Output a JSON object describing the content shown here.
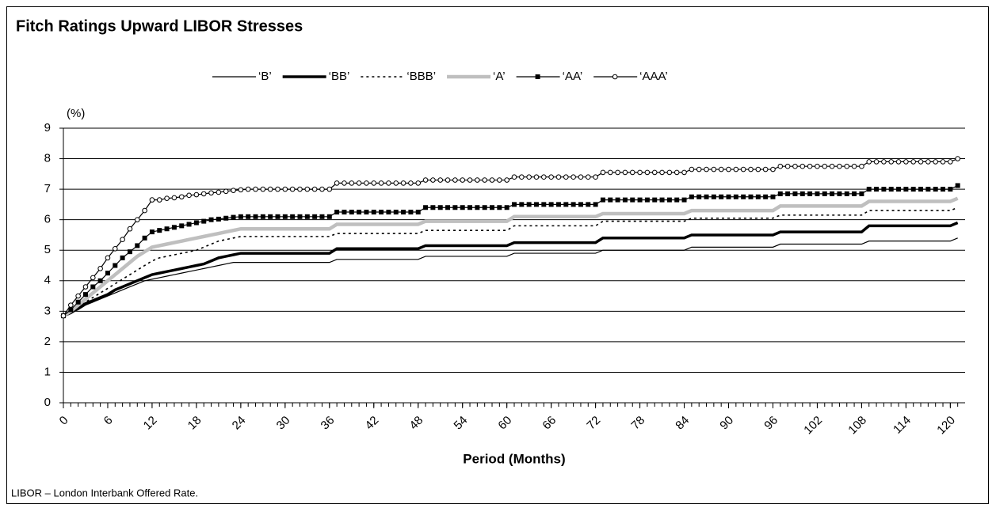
{
  "chart_data": {
    "type": "line",
    "title": "Fitch Ratings Upward LIBOR Stresses",
    "y_label": "(%)",
    "x_label": "Period (Months)",
    "footnote": "LIBOR – London Interbank Offered Rate.",
    "x": [
      0,
      1,
      2,
      3,
      4,
      5,
      6,
      7,
      8,
      9,
      10,
      11,
      12,
      13,
      14,
      15,
      16,
      17,
      18,
      19,
      20,
      21,
      22,
      23,
      24,
      25,
      26,
      27,
      28,
      29,
      30,
      31,
      32,
      33,
      34,
      35,
      36,
      37,
      38,
      39,
      40,
      41,
      42,
      43,
      44,
      45,
      46,
      47,
      48,
      49,
      50,
      51,
      52,
      53,
      54,
      55,
      56,
      57,
      58,
      59,
      60,
      61,
      62,
      63,
      64,
      65,
      66,
      67,
      68,
      69,
      70,
      71,
      72,
      73,
      74,
      75,
      76,
      77,
      78,
      79,
      80,
      81,
      82,
      83,
      84,
      85,
      86,
      87,
      88,
      89,
      90,
      91,
      92,
      93,
      94,
      95,
      96,
      97,
      98,
      99,
      100,
      101,
      102,
      103,
      104,
      105,
      106,
      107,
      108,
      109,
      110,
      111,
      112,
      113,
      114,
      115,
      116,
      117,
      118,
      119,
      120,
      121
    ],
    "xlim": [
      0,
      122
    ],
    "xticks": [
      0,
      6,
      12,
      18,
      24,
      30,
      36,
      42,
      48,
      54,
      60,
      66,
      72,
      78,
      84,
      90,
      96,
      102,
      108,
      114,
      120
    ],
    "ylim": [
      0,
      9
    ],
    "yticks": [
      0,
      1,
      2,
      3,
      4,
      5,
      6,
      7,
      8,
      9
    ],
    "grid": true,
    "series": [
      {
        "name": "‘B’",
        "color": "#000000",
        "line_width": 1.2,
        "dash": "none",
        "marker": "none",
        "values": [
          2.85,
          2.95,
          3.05,
          3.2,
          3.3,
          3.4,
          3.5,
          3.6,
          3.7,
          3.8,
          3.9,
          4.0,
          4.05,
          4.1,
          4.15,
          4.2,
          4.25,
          4.3,
          4.35,
          4.4,
          4.45,
          4.5,
          4.55,
          4.6,
          4.6,
          4.6,
          4.6,
          4.6,
          4.6,
          4.6,
          4.6,
          4.6,
          4.6,
          4.6,
          4.6,
          4.6,
          4.6,
          4.7,
          4.7,
          4.7,
          4.7,
          4.7,
          4.7,
          4.7,
          4.7,
          4.7,
          4.7,
          4.7,
          4.7,
          4.8,
          4.8,
          4.8,
          4.8,
          4.8,
          4.8,
          4.8,
          4.8,
          4.8,
          4.8,
          4.8,
          4.8,
          4.9,
          4.9,
          4.9,
          4.9,
          4.9,
          4.9,
          4.9,
          4.9,
          4.9,
          4.9,
          4.9,
          4.9,
          5.0,
          5.0,
          5.0,
          5.0,
          5.0,
          5.0,
          5.0,
          5.0,
          5.0,
          5.0,
          5.0,
          5.0,
          5.1,
          5.1,
          5.1,
          5.1,
          5.1,
          5.1,
          5.1,
          5.1,
          5.1,
          5.1,
          5.1,
          5.1,
          5.2,
          5.2,
          5.2,
          5.2,
          5.2,
          5.2,
          5.2,
          5.2,
          5.2,
          5.2,
          5.2,
          5.2,
          5.3,
          5.3,
          5.3,
          5.3,
          5.3,
          5.3,
          5.3,
          5.3,
          5.3,
          5.3,
          5.3,
          5.3,
          5.4
        ]
      },
      {
        "name": "‘BB’",
        "color": "#000000",
        "line_width": 3.5,
        "dash": "none",
        "marker": "none",
        "values": [
          2.85,
          2.95,
          3.1,
          3.25,
          3.35,
          3.45,
          3.55,
          3.7,
          3.8,
          3.9,
          4.0,
          4.1,
          4.2,
          4.25,
          4.3,
          4.35,
          4.4,
          4.45,
          4.5,
          4.55,
          4.65,
          4.75,
          4.8,
          4.85,
          4.9,
          4.9,
          4.9,
          4.9,
          4.9,
          4.9,
          4.9,
          4.9,
          4.9,
          4.9,
          4.9,
          4.9,
          4.9,
          5.05,
          5.05,
          5.05,
          5.05,
          5.05,
          5.05,
          5.05,
          5.05,
          5.05,
          5.05,
          5.05,
          5.05,
          5.15,
          5.15,
          5.15,
          5.15,
          5.15,
          5.15,
          5.15,
          5.15,
          5.15,
          5.15,
          5.15,
          5.15,
          5.25,
          5.25,
          5.25,
          5.25,
          5.25,
          5.25,
          5.25,
          5.25,
          5.25,
          5.25,
          5.25,
          5.25,
          5.4,
          5.4,
          5.4,
          5.4,
          5.4,
          5.4,
          5.4,
          5.4,
          5.4,
          5.4,
          5.4,
          5.4,
          5.5,
          5.5,
          5.5,
          5.5,
          5.5,
          5.5,
          5.5,
          5.5,
          5.5,
          5.5,
          5.5,
          5.5,
          5.6,
          5.6,
          5.6,
          5.6,
          5.6,
          5.6,
          5.6,
          5.6,
          5.6,
          5.6,
          5.6,
          5.6,
          5.8,
          5.8,
          5.8,
          5.8,
          5.8,
          5.8,
          5.8,
          5.8,
          5.8,
          5.8,
          5.8,
          5.8,
          5.9
        ]
      },
      {
        "name": "‘BBB’",
        "color": "#000000",
        "line_width": 1.6,
        "dash": "3 4",
        "marker": "none",
        "values": [
          2.85,
          3.0,
          3.15,
          3.3,
          3.45,
          3.6,
          3.75,
          3.9,
          4.05,
          4.2,
          4.35,
          4.5,
          4.65,
          4.75,
          4.8,
          4.85,
          4.9,
          4.95,
          5.0,
          5.1,
          5.2,
          5.3,
          5.35,
          5.4,
          5.45,
          5.45,
          5.45,
          5.45,
          5.45,
          5.45,
          5.45,
          5.45,
          5.45,
          5.45,
          5.45,
          5.45,
          5.45,
          5.55,
          5.55,
          5.55,
          5.55,
          5.55,
          5.55,
          5.55,
          5.55,
          5.55,
          5.55,
          5.55,
          5.55,
          5.65,
          5.65,
          5.65,
          5.65,
          5.65,
          5.65,
          5.65,
          5.65,
          5.65,
          5.65,
          5.65,
          5.65,
          5.8,
          5.8,
          5.8,
          5.8,
          5.8,
          5.8,
          5.8,
          5.8,
          5.8,
          5.8,
          5.8,
          5.8,
          5.95,
          5.95,
          5.95,
          5.95,
          5.95,
          5.95,
          5.95,
          5.95,
          5.95,
          5.95,
          5.95,
          5.95,
          6.05,
          6.05,
          6.05,
          6.05,
          6.05,
          6.05,
          6.05,
          6.05,
          6.05,
          6.05,
          6.05,
          6.05,
          6.15,
          6.15,
          6.15,
          6.15,
          6.15,
          6.15,
          6.15,
          6.15,
          6.15,
          6.15,
          6.15,
          6.15,
          6.3,
          6.3,
          6.3,
          6.3,
          6.3,
          6.3,
          6.3,
          6.3,
          6.3,
          6.3,
          6.3,
          6.3,
          6.4
        ]
      },
      {
        "name": "‘A’",
        "color": "#bfbfbf",
        "line_width": 4.5,
        "dash": "none",
        "marker": "none",
        "values": [
          2.85,
          3.0,
          3.2,
          3.4,
          3.6,
          3.8,
          4.0,
          4.2,
          4.4,
          4.6,
          4.8,
          4.95,
          5.1,
          5.15,
          5.2,
          5.25,
          5.3,
          5.35,
          5.4,
          5.45,
          5.5,
          5.55,
          5.6,
          5.65,
          5.7,
          5.7,
          5.7,
          5.7,
          5.7,
          5.7,
          5.7,
          5.7,
          5.7,
          5.7,
          5.7,
          5.7,
          5.7,
          5.85,
          5.85,
          5.85,
          5.85,
          5.85,
          5.85,
          5.85,
          5.85,
          5.85,
          5.85,
          5.85,
          5.85,
          5.95,
          5.95,
          5.95,
          5.95,
          5.95,
          5.95,
          5.95,
          5.95,
          5.95,
          5.95,
          5.95,
          5.95,
          6.1,
          6.1,
          6.1,
          6.1,
          6.1,
          6.1,
          6.1,
          6.1,
          6.1,
          6.1,
          6.1,
          6.1,
          6.2,
          6.2,
          6.2,
          6.2,
          6.2,
          6.2,
          6.2,
          6.2,
          6.2,
          6.2,
          6.2,
          6.2,
          6.3,
          6.3,
          6.3,
          6.3,
          6.3,
          6.3,
          6.3,
          6.3,
          6.3,
          6.3,
          6.3,
          6.3,
          6.45,
          6.45,
          6.45,
          6.45,
          6.45,
          6.45,
          6.45,
          6.45,
          6.45,
          6.45,
          6.45,
          6.45,
          6.6,
          6.6,
          6.6,
          6.6,
          6.6,
          6.6,
          6.6,
          6.6,
          6.6,
          6.6,
          6.6,
          6.6,
          6.7
        ]
      },
      {
        "name": "‘AA’",
        "color": "#000000",
        "line_width": 1.2,
        "dash": "none",
        "marker": "square",
        "values": [
          2.85,
          3.05,
          3.3,
          3.55,
          3.8,
          4.0,
          4.25,
          4.5,
          4.75,
          4.95,
          5.15,
          5.4,
          5.6,
          5.65,
          5.7,
          5.75,
          5.8,
          5.85,
          5.9,
          5.95,
          6.0,
          6.02,
          6.05,
          6.08,
          6.1,
          6.1,
          6.1,
          6.1,
          6.1,
          6.1,
          6.1,
          6.1,
          6.1,
          6.1,
          6.1,
          6.1,
          6.1,
          6.25,
          6.25,
          6.25,
          6.25,
          6.25,
          6.25,
          6.25,
          6.25,
          6.25,
          6.25,
          6.25,
          6.25,
          6.4,
          6.4,
          6.4,
          6.4,
          6.4,
          6.4,
          6.4,
          6.4,
          6.4,
          6.4,
          6.4,
          6.4,
          6.5,
          6.5,
          6.5,
          6.5,
          6.5,
          6.5,
          6.5,
          6.5,
          6.5,
          6.5,
          6.5,
          6.5,
          6.65,
          6.65,
          6.65,
          6.65,
          6.65,
          6.65,
          6.65,
          6.65,
          6.65,
          6.65,
          6.65,
          6.65,
          6.75,
          6.75,
          6.75,
          6.75,
          6.75,
          6.75,
          6.75,
          6.75,
          6.75,
          6.75,
          6.75,
          6.75,
          6.85,
          6.85,
          6.85,
          6.85,
          6.85,
          6.85,
          6.85,
          6.85,
          6.85,
          6.85,
          6.85,
          6.85,
          7.0,
          7.0,
          7.0,
          7.0,
          7.0,
          7.0,
          7.0,
          7.0,
          7.0,
          7.0,
          7.0,
          7.0,
          7.12
        ]
      },
      {
        "name": "‘AAA’",
        "color": "#000000",
        "line_width": 1.2,
        "dash": "none",
        "marker": "circle",
        "values": [
          2.85,
          3.2,
          3.5,
          3.8,
          4.1,
          4.4,
          4.75,
          5.05,
          5.35,
          5.7,
          6.0,
          6.3,
          6.65,
          6.65,
          6.7,
          6.72,
          6.75,
          6.8,
          6.82,
          6.85,
          6.88,
          6.9,
          6.93,
          6.96,
          6.98,
          7.0,
          7.0,
          7.0,
          7.0,
          7.0,
          7.0,
          7.0,
          7.0,
          7.0,
          7.0,
          7.0,
          7.0,
          7.2,
          7.2,
          7.2,
          7.2,
          7.2,
          7.2,
          7.2,
          7.2,
          7.2,
          7.2,
          7.2,
          7.2,
          7.3,
          7.3,
          7.3,
          7.3,
          7.3,
          7.3,
          7.3,
          7.3,
          7.3,
          7.3,
          7.3,
          7.3,
          7.4,
          7.4,
          7.4,
          7.4,
          7.4,
          7.4,
          7.4,
          7.4,
          7.4,
          7.4,
          7.4,
          7.4,
          7.55,
          7.55,
          7.55,
          7.55,
          7.55,
          7.55,
          7.55,
          7.55,
          7.55,
          7.55,
          7.55,
          7.55,
          7.65,
          7.65,
          7.65,
          7.65,
          7.65,
          7.65,
          7.65,
          7.65,
          7.65,
          7.65,
          7.65,
          7.65,
          7.75,
          7.75,
          7.75,
          7.75,
          7.75,
          7.75,
          7.75,
          7.75,
          7.75,
          7.75,
          7.75,
          7.75,
          7.9,
          7.9,
          7.9,
          7.9,
          7.9,
          7.9,
          7.9,
          7.9,
          7.9,
          7.9,
          7.9,
          7.9,
          8.0
        ]
      }
    ]
  }
}
